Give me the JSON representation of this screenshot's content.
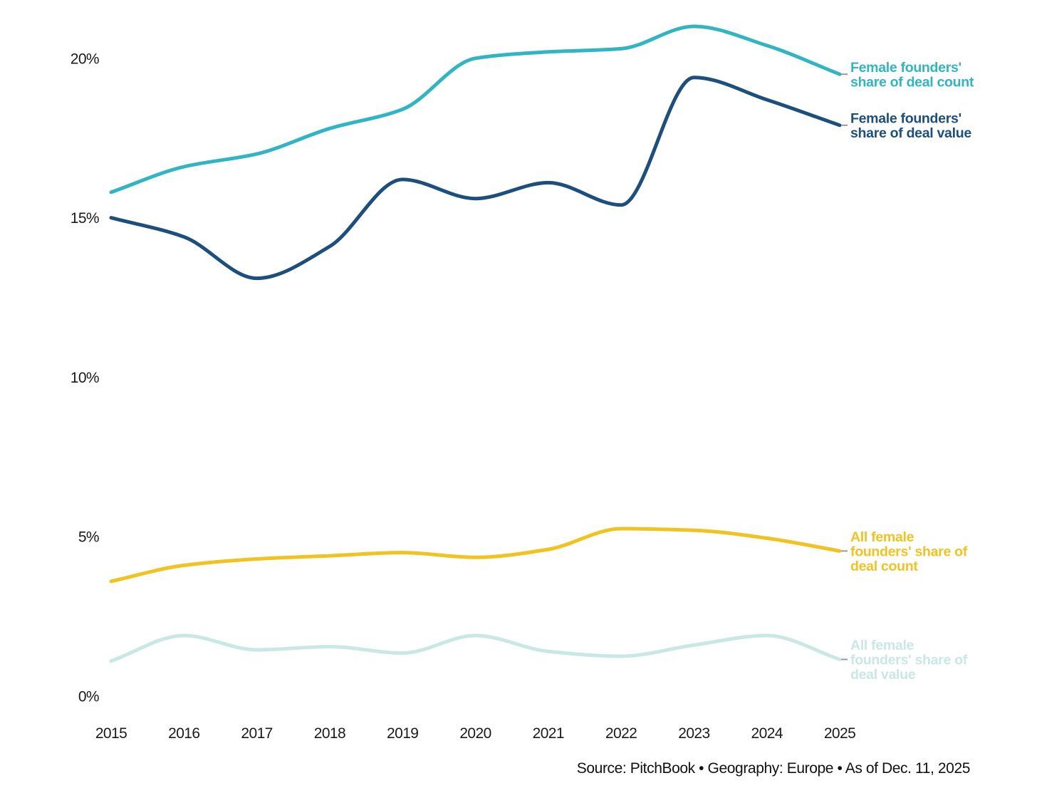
{
  "chart_data": {
    "type": "line",
    "x": [
      2015,
      2016,
      2017,
      2018,
      2019,
      2020,
      2021,
      2022,
      2023,
      2024,
      2025
    ],
    "x_labels": [
      "2015",
      "2016",
      "2017",
      "2018",
      "2019",
      "2020",
      "2021",
      "2022",
      "2023",
      "2024",
      "2025"
    ],
    "yticks": [
      0,
      5,
      10,
      15,
      20
    ],
    "ytick_labels": [
      "0%",
      "5%",
      "10%",
      "15%",
      "20%"
    ],
    "ylim": [
      0,
      21.8
    ],
    "grid": false,
    "legend_position": "line-end-labels-right",
    "unit": "%",
    "series": [
      {
        "id": "female-share-deal-count",
        "name": "Female founders' share of deal count",
        "label_lines": [
          "Female founders'",
          "share of deal count"
        ],
        "color": "#31b5c2",
        "values": [
          15.8,
          16.6,
          17.0,
          17.8,
          18.4,
          20.0,
          20.2,
          20.3,
          21.0,
          20.4,
          19.5
        ]
      },
      {
        "id": "female-share-deal-value",
        "name": "Female founders' share of deal value",
        "label_lines": [
          "Female founders'",
          "share of deal value"
        ],
        "color": "#1d4f7c",
        "values": [
          15.0,
          14.4,
          13.1,
          14.1,
          16.2,
          15.6,
          16.1,
          15.4,
          19.4,
          18.7,
          17.9
        ]
      },
      {
        "id": "all-female-share-deal-count",
        "name": "All female founders' share of deal count",
        "label_lines": [
          "All female",
          "founders' share of",
          "deal count"
        ],
        "color": "#f0c320",
        "values": [
          3.6,
          4.1,
          4.3,
          4.4,
          4.5,
          4.35,
          4.6,
          5.25,
          5.2,
          4.95,
          4.55
        ]
      },
      {
        "id": "all-female-share-deal-value",
        "name": "All female founders' share of deal value",
        "label_lines": [
          "All female",
          "founders' share of",
          "deal value"
        ],
        "color": "#c9e8e4",
        "values": [
          1.1,
          1.9,
          1.45,
          1.55,
          1.35,
          1.9,
          1.4,
          1.25,
          1.6,
          1.9,
          1.15
        ]
      }
    ],
    "leader_tick_color": "#999999",
    "axis_text_color": "#1a1a1a"
  },
  "source_note": "Source: PitchBook • Geography: Europe • As of Dec. 11, 2025"
}
